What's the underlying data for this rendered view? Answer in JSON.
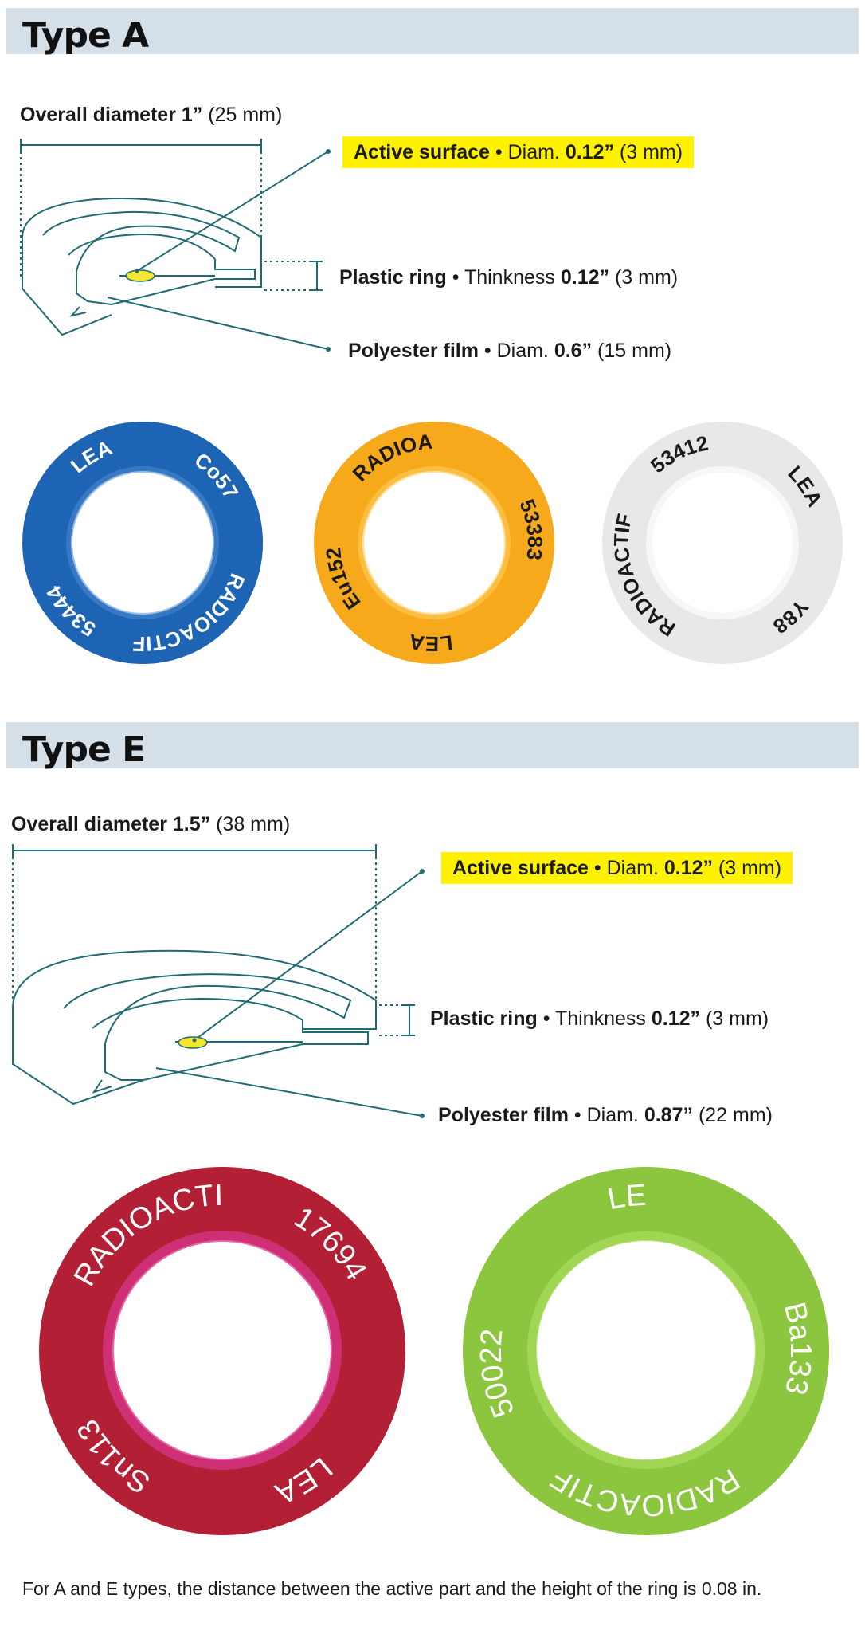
{
  "typeA": {
    "title": "Type A",
    "overall_diameter": {
      "name": "Overall diameter 1”",
      "value": "(25 mm)"
    },
    "active_surface": {
      "name": "Active surface",
      "sep": " • Diam. ",
      "value_bold": "0.12”",
      "value": " (3 mm)"
    },
    "plastic_ring": {
      "name": "Plastic ring",
      "sep": " • Thinkness ",
      "value_bold": "0.12”",
      "value": " (3 mm)"
    },
    "polyester_film": {
      "name": "Polyester film",
      "sep": " • Diam. ",
      "value_bold": "0.6”",
      "value": " (15 mm)"
    },
    "rings": [
      {
        "color": "#1d64b4",
        "text_color": "#ffffff",
        "labels": [
          "LEA",
          "Co57",
          "RADIOACTIF",
          "53444"
        ]
      },
      {
        "color": "#f7a91c",
        "text_color": "#1a1a1a",
        "labels": [
          "RADIOACTIF",
          "53383",
          "LEA",
          "Eu152"
        ]
      },
      {
        "color": "#e6e8ea",
        "text_color": "#1a1a1a",
        "labels": [
          "53412",
          "LEA",
          "Y88",
          "RADIOACTIF"
        ]
      }
    ]
  },
  "typeE": {
    "title": "Type E",
    "overall_diameter": {
      "name": "Overall diameter 1.5”",
      "value": "(38 mm)"
    },
    "active_surface": {
      "name": "Active surface",
      "sep": " • Diam. ",
      "value_bold": "0.12”",
      "value": " (3 mm)"
    },
    "plastic_ring": {
      "name": "Plastic ring",
      "sep": " • Thinkness ",
      "value_bold": "0.12”",
      "value": " (3 mm)"
    },
    "polyester_film": {
      "name": "Polyester film",
      "sep": " • Diam. ",
      "value_bold": "0.87”",
      "value": " (22 mm)"
    },
    "rings": [
      {
        "color": "#b31f35",
        "text_color": "#ffffff",
        "labels": [
          "RADIOACTIF",
          "17694",
          "LEA",
          "Sn113"
        ]
      },
      {
        "color": "#8cc63f",
        "text_color": "#ffffff",
        "labels": [
          "LEA",
          "Ba133",
          "RADIOACTIF",
          "50022"
        ]
      }
    ]
  },
  "footnote": "For A and E types, the distance between the active part and the height of the ring is 0.08 in.",
  "colors": {
    "header_bg": "#d5dfe7",
    "line": "#1f6b74",
    "highlight": "#fff200"
  }
}
